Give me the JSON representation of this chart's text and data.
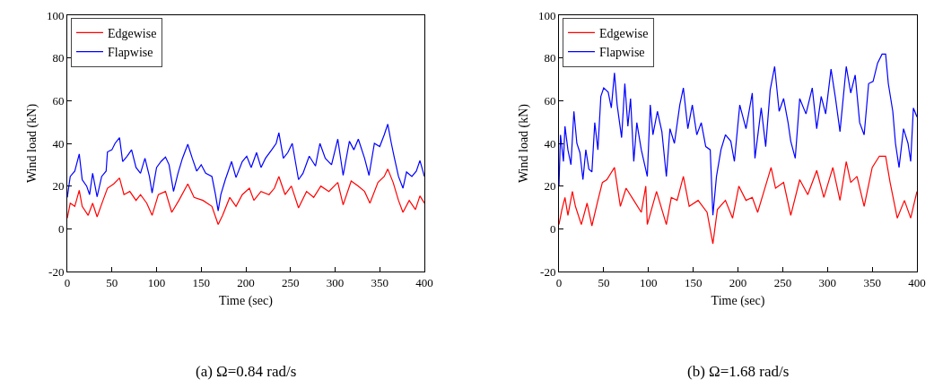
{
  "chart_data": [
    {
      "type": "line",
      "title": "(a) Ω=0.84 rad/s",
      "xlabel": "Time (sec)",
      "ylabel": "Wind load (kN)",
      "xlim": [
        0,
        400
      ],
      "xticks": [
        0,
        50,
        100,
        150,
        200,
        250,
        300,
        350,
        400
      ],
      "ylim": [
        -20,
        100
      ],
      "yticks": [
        -20,
        0,
        20,
        40,
        60,
        80,
        100
      ],
      "grid": false,
      "legend": "top left",
      "marker": "none",
      "line_style": "solid",
      "series": [
        {
          "name": "Edgewise",
          "color": "#ff0000",
          "x": [
            0,
            3.3,
            8.4,
            13.4,
            16.7,
            23.4,
            28.4,
            33.4,
            40,
            45,
            52,
            58.5,
            63.5,
            70,
            77,
            82,
            89,
            95,
            102,
            110,
            117,
            125,
            135,
            142,
            152,
            162,
            169,
            174,
            182,
            189,
            196,
            204,
            209,
            217,
            226,
            232,
            237,
            244,
            251,
            259,
            268,
            276,
            284,
            293,
            303,
            309,
            318,
            326,
            333,
            339,
            348,
            355,
            359,
            365,
            371,
            376,
            383,
            390,
            395,
            400
          ],
          "values": [
            5,
            12,
            10.5,
            18,
            10.5,
            6.3,
            12,
            5.6,
            13.3,
            19,
            21,
            23.8,
            16,
            17.5,
            13.3,
            16,
            12,
            6.3,
            16,
            17.5,
            7.7,
            13.3,
            21,
            14.7,
            13.3,
            10.5,
            2,
            6.3,
            14.7,
            10.5,
            16,
            19,
            13.3,
            17.5,
            16,
            19,
            24.5,
            16,
            20,
            9.8,
            17.5,
            14.7,
            20,
            17.5,
            21.7,
            11.2,
            22.4,
            20,
            17.5,
            12,
            21.7,
            24.5,
            28,
            21.7,
            13.3,
            7.7,
            13.3,
            9,
            15.4,
            12
          ]
        },
        {
          "name": "Flapwise",
          "color": "#0000ff",
          "x": [
            0,
            3.3,
            8.4,
            13.4,
            16.7,
            21.7,
            25,
            28.4,
            33.4,
            38.5,
            43.5,
            45,
            50,
            53.5,
            58.5,
            62,
            67,
            72,
            77,
            82,
            87,
            92,
            95,
            100,
            105,
            110,
            114,
            119,
            124,
            129,
            135,
            140,
            145,
            150,
            155,
            162,
            166,
            169,
            172,
            177,
            184,
            189,
            196,
            201,
            206,
            212,
            217,
            222,
            229,
            234,
            237,
            242,
            247,
            252,
            259,
            264,
            271,
            278,
            283,
            289,
            296,
            303,
            309,
            316,
            321,
            326,
            333,
            338,
            344,
            350,
            355,
            359,
            363,
            366,
            371,
            376,
            380,
            386,
            391,
            395,
            400
          ],
          "values": [
            14.7,
            24.5,
            27,
            35,
            23,
            20,
            16,
            26,
            15,
            24.5,
            27,
            36,
            37,
            40,
            42.7,
            31.5,
            34,
            37,
            28.7,
            26,
            33,
            24.5,
            16.8,
            28.7,
            31.5,
            33.6,
            30,
            17.5,
            26,
            33,
            39.6,
            33,
            27,
            30,
            26,
            24.5,
            16,
            8.4,
            16,
            23,
            31.5,
            24,
            31.5,
            34,
            28.7,
            35.7,
            28.7,
            33,
            37,
            40,
            45,
            33,
            35.7,
            40,
            23,
            26,
            34,
            29.4,
            40,
            33,
            30,
            42,
            25,
            41,
            37,
            42,
            33,
            25,
            40,
            38.5,
            44,
            49,
            40,
            34,
            24.5,
            19,
            26.6,
            24.5,
            27,
            32,
            24.5
          ]
        }
      ]
    },
    {
      "type": "line",
      "title": "(b) Ω=1.68 rad/s",
      "xlabel": "Time (sec)",
      "ylabel": "Wind load (kN)",
      "xlim": [
        0,
        400
      ],
      "xticks": [
        0,
        50,
        100,
        150,
        200,
        250,
        300,
        350,
        400
      ],
      "ylim": [
        -20,
        100
      ],
      "yticks": [
        -20,
        0,
        20,
        40,
        60,
        80,
        100
      ],
      "grid": false,
      "legend": "top left",
      "marker": "none",
      "line_style": "solid",
      "series": [
        {
          "name": "Edgewise",
          "color": "#ff0000",
          "x": [
            0,
            3.3,
            6.7,
            10,
            15,
            18.4,
            25,
            31.4,
            36.8,
            43.5,
            48.5,
            53.5,
            62,
            68.6,
            75,
            83.6,
            92,
            97,
            98.7,
            109,
            120,
            125.5,
            132,
            139,
            145.5,
            155.5,
            165.5,
            172,
            177,
            186,
            194,
            201,
            209,
            216,
            222,
            229,
            237,
            242,
            251,
            259,
            269,
            278,
            288,
            296,
            306,
            314,
            321,
            326,
            333,
            341,
            350,
            358,
            365,
            370,
            378,
            386,
            393,
            400
          ],
          "values": [
            2,
            9,
            14.7,
            6.3,
            17.5,
            10.5,
            2,
            12,
            1.4,
            13.3,
            21.7,
            23,
            28.7,
            10.5,
            19,
            13.3,
            7.7,
            20,
            2,
            17.5,
            2,
            14.7,
            13.3,
            24.5,
            10.5,
            13.3,
            7.7,
            -7,
            9,
            13.3,
            5,
            20,
            13.3,
            14.7,
            7.7,
            17.5,
            28.7,
            19,
            21.7,
            6.3,
            23,
            16,
            27.3,
            14.7,
            28.7,
            13.3,
            31.5,
            21.7,
            24.5,
            10.5,
            28.7,
            34,
            34,
            21.7,
            5,
            13.3,
            5,
            17.5
          ]
        },
        {
          "name": "Flapwise",
          "color": "#0000ff",
          "x": [
            0,
            1.7,
            5,
            6.7,
            10,
            13.4,
            16.7,
            20,
            23.4,
            26.8,
            30,
            33.4,
            36.8,
            40,
            43.5,
            46.8,
            50,
            55,
            58.5,
            62,
            65,
            70,
            73.6,
            77,
            80,
            83.6,
            87,
            92,
            98.7,
            102,
            105,
            110,
            115,
            120,
            124,
            129,
            135,
            139,
            144,
            149,
            154,
            159,
            164,
            169,
            172,
            176,
            181,
            186,
            192,
            196,
            202,
            209,
            216,
            219,
            226,
            231,
            236,
            241,
            246,
            251,
            256,
            259,
            264,
            269,
            276,
            283,
            288,
            293,
            298,
            304,
            309,
            314,
            321,
            326,
            331,
            336,
            341,
            346,
            351,
            356,
            361,
            365,
            368,
            373,
            376,
            380,
            385,
            390,
            393,
            396,
            400
          ],
          "values": [
            20,
            44,
            31.5,
            48,
            37,
            30,
            55,
            40,
            35.7,
            23,
            37,
            28,
            26.6,
            49.7,
            37,
            62,
            66,
            64,
            56.6,
            73,
            58,
            42.7,
            68,
            48,
            61,
            31.5,
            49.7,
            37,
            24.5,
            58,
            44,
            55,
            45.5,
            24.5,
            46.9,
            40,
            58,
            66,
            46.9,
            58,
            44,
            49.7,
            38.5,
            37,
            6.3,
            24.5,
            37,
            44,
            41,
            31.5,
            58,
            46.9,
            63.6,
            33,
            56.6,
            38.5,
            65,
            76,
            55,
            61,
            49.7,
            41,
            33,
            61,
            53.8,
            66,
            46.9,
            62,
            53.8,
            74.8,
            61,
            45.5,
            76,
            63.6,
            72,
            49.7,
            44,
            68,
            69,
            77.6,
            81.8,
            81.8,
            68,
            55,
            40,
            28.7,
            46.9,
            40,
            31.5,
            56.6,
            52.4
          ]
        }
      ]
    }
  ]
}
